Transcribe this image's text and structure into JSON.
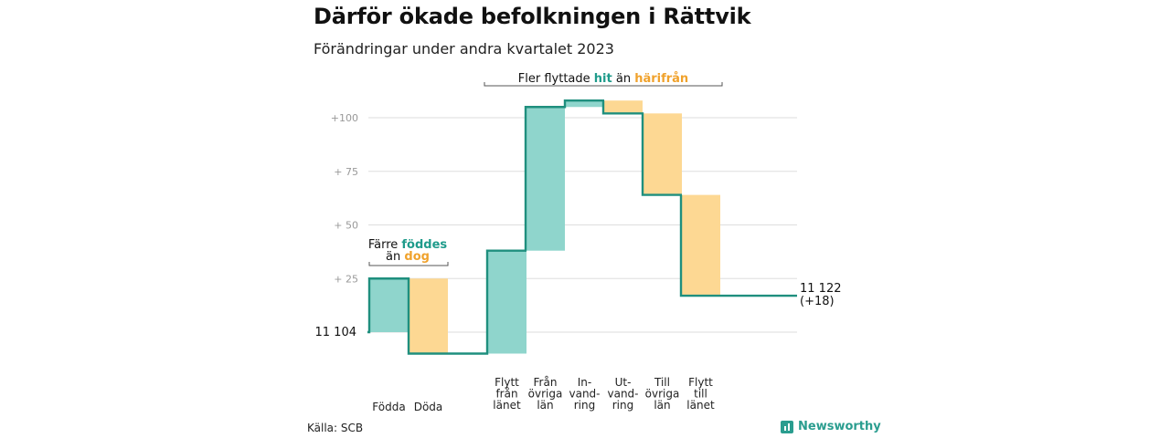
{
  "header": {
    "title": "Därför ökade befolkningen i Rättvik",
    "subtitle": "Förändringar under andra kvartalet 2023"
  },
  "footer": {
    "source": "Källa: SCB",
    "brand": "Newsworthy"
  },
  "colors": {
    "increase": "#8fd5cc",
    "decrease": "#fdd893",
    "line": "#1f8f7e",
    "teal_text": "#1f9b8b",
    "orange_text": "#f0a22c"
  },
  "chart_data": {
    "type": "waterfall",
    "base_value": 11104,
    "start_label": "11  104",
    "end_label": "11 122",
    "end_change_label": "(+18)",
    "yticks": [
      {
        "value": 25,
        "label": "+  25"
      },
      {
        "value": 50,
        "label": "+  50"
      },
      {
        "value": 75,
        "label": "+  75"
      },
      {
        "value": 100,
        "label": "+100"
      }
    ],
    "ylim": [
      -10,
      110
    ],
    "steps": [
      {
        "label_lines": [
          "Födda"
        ],
        "value": 25,
        "kind": "increase",
        "group": 1
      },
      {
        "label_lines": [
          "Döda"
        ],
        "value": -35,
        "kind": "decrease",
        "group": 1
      },
      {
        "label_lines": [
          "Flytt",
          "från",
          "länet"
        ],
        "value": 48,
        "kind": "increase",
        "group": 2
      },
      {
        "label_lines": [
          "Från",
          "övriga",
          "län"
        ],
        "value": 67,
        "kind": "increase",
        "group": 2
      },
      {
        "label_lines": [
          "In-",
          "vand-",
          "ring"
        ],
        "value": 3,
        "kind": "increase",
        "group": 2
      },
      {
        "label_lines": [
          "Ut-",
          "vand-",
          "ring"
        ],
        "value": -6,
        "kind": "decrease",
        "group": 2
      },
      {
        "label_lines": [
          "Till",
          "övriga",
          "län"
        ],
        "value": -38,
        "kind": "decrease",
        "group": 2
      },
      {
        "label_lines": [
          "Flytt",
          "till",
          "länet"
        ],
        "value": -47,
        "kind": "decrease",
        "group": 2
      }
    ],
    "end_value": 18,
    "annotations": [
      {
        "id": "births",
        "line1_parts": [
          "Färre ",
          "föddes"
        ],
        "line2_parts": [
          "än ",
          "dog"
        ]
      },
      {
        "id": "moves",
        "parts": [
          "Fler flyttade ",
          "hit",
          " än ",
          "härifrån"
        ]
      }
    ]
  }
}
